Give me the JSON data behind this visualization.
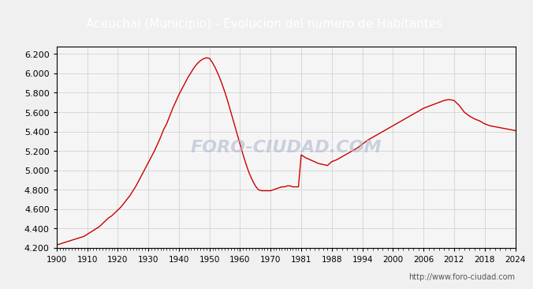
{
  "title": "Aceuchal (Municipio) - Evolucion del numero de Habitantes",
  "title_bg": "#4d7ebf",
  "title_color": "white",
  "plot_bg": "#f5f5f5",
  "outer_bg": "#f0f0f0",
  "line_color": "#cc0000",
  "watermark": "FORO-CIUDAD.COM",
  "url": "http://www.foro-ciudad.com",
  "ylim": [
    4200,
    6280
  ],
  "yticks": [
    4200,
    4400,
    4600,
    4800,
    5000,
    5200,
    5400,
    5600,
    5800,
    6000,
    6200
  ],
  "xtick_labels": [
    "1900",
    "1910",
    "1920",
    "1930",
    "1940",
    "1950",
    "1960",
    "1970",
    "1981",
    "1988",
    "1994",
    "2000",
    "2006",
    "2012",
    "2018",
    "2024"
  ],
  "data": [
    [
      1900,
      4230
    ],
    [
      1901,
      4240
    ],
    [
      1902,
      4250
    ],
    [
      1903,
      4260
    ],
    [
      1904,
      4270
    ],
    [
      1905,
      4280
    ],
    [
      1906,
      4290
    ],
    [
      1907,
      4300
    ],
    [
      1908,
      4310
    ],
    [
      1909,
      4320
    ],
    [
      1910,
      4340
    ],
    [
      1911,
      4360
    ],
    [
      1912,
      4380
    ],
    [
      1913,
      4400
    ],
    [
      1914,
      4420
    ],
    [
      1915,
      4450
    ],
    [
      1916,
      4480
    ],
    [
      1917,
      4510
    ],
    [
      1918,
      4530
    ],
    [
      1919,
      4560
    ],
    [
      1920,
      4590
    ],
    [
      1921,
      4620
    ],
    [
      1922,
      4660
    ],
    [
      1923,
      4700
    ],
    [
      1924,
      4740
    ],
    [
      1925,
      4790
    ],
    [
      1926,
      4840
    ],
    [
      1927,
      4900
    ],
    [
      1928,
      4960
    ],
    [
      1929,
      5020
    ],
    [
      1930,
      5080
    ],
    [
      1931,
      5140
    ],
    [
      1932,
      5200
    ],
    [
      1933,
      5270
    ],
    [
      1934,
      5340
    ],
    [
      1935,
      5420
    ],
    [
      1936,
      5480
    ],
    [
      1937,
      5560
    ],
    [
      1938,
      5640
    ],
    [
      1939,
      5710
    ],
    [
      1940,
      5780
    ],
    [
      1941,
      5840
    ],
    [
      1942,
      5900
    ],
    [
      1943,
      5960
    ],
    [
      1944,
      6010
    ],
    [
      1945,
      6060
    ],
    [
      1946,
      6100
    ],
    [
      1947,
      6130
    ],
    [
      1948,
      6150
    ],
    [
      1949,
      6160
    ],
    [
      1950,
      6155
    ],
    [
      1951,
      6110
    ],
    [
      1952,
      6050
    ],
    [
      1953,
      5980
    ],
    [
      1954,
      5900
    ],
    [
      1955,
      5810
    ],
    [
      1956,
      5710
    ],
    [
      1957,
      5600
    ],
    [
      1958,
      5490
    ],
    [
      1959,
      5380
    ],
    [
      1960,
      5270
    ],
    [
      1961,
      5160
    ],
    [
      1962,
      5060
    ],
    [
      1963,
      4970
    ],
    [
      1964,
      4900
    ],
    [
      1965,
      4840
    ],
    [
      1966,
      4800
    ],
    [
      1967,
      4790
    ],
    [
      1968,
      4790
    ],
    [
      1969,
      4790
    ],
    [
      1970,
      4790
    ],
    [
      1971,
      4800
    ],
    [
      1972,
      4810
    ],
    [
      1973,
      4820
    ],
    [
      1974,
      4830
    ],
    [
      1975,
      4830
    ],
    [
      1976,
      4840
    ],
    [
      1977,
      4840
    ],
    [
      1978,
      4830
    ],
    [
      1979,
      4830
    ],
    [
      1980,
      4830
    ],
    [
      1981,
      5160
    ],
    [
      1982,
      5130
    ],
    [
      1983,
      5110
    ],
    [
      1984,
      5090
    ],
    [
      1985,
      5070
    ],
    [
      1986,
      5060
    ],
    [
      1987,
      5050
    ],
    [
      1988,
      5090
    ],
    [
      1989,
      5110
    ],
    [
      1990,
      5140
    ],
    [
      1991,
      5170
    ],
    [
      1992,
      5200
    ],
    [
      1993,
      5230
    ],
    [
      1994,
      5270
    ],
    [
      1995,
      5310
    ],
    [
      1996,
      5340
    ],
    [
      1997,
      5370
    ],
    [
      1998,
      5400
    ],
    [
      1999,
      5430
    ],
    [
      2000,
      5460
    ],
    [
      2001,
      5490
    ],
    [
      2002,
      5520
    ],
    [
      2003,
      5550
    ],
    [
      2004,
      5580
    ],
    [
      2005,
      5610
    ],
    [
      2006,
      5640
    ],
    [
      2007,
      5660
    ],
    [
      2008,
      5680
    ],
    [
      2009,
      5700
    ],
    [
      2010,
      5720
    ],
    [
      2011,
      5730
    ],
    [
      2012,
      5720
    ],
    [
      2013,
      5670
    ],
    [
      2014,
      5600
    ],
    [
      2015,
      5560
    ],
    [
      2016,
      5530
    ],
    [
      2017,
      5510
    ],
    [
      2018,
      5480
    ],
    [
      2019,
      5460
    ],
    [
      2020,
      5450
    ],
    [
      2021,
      5440
    ],
    [
      2022,
      5430
    ],
    [
      2023,
      5420
    ],
    [
      2024,
      5410
    ]
  ]
}
